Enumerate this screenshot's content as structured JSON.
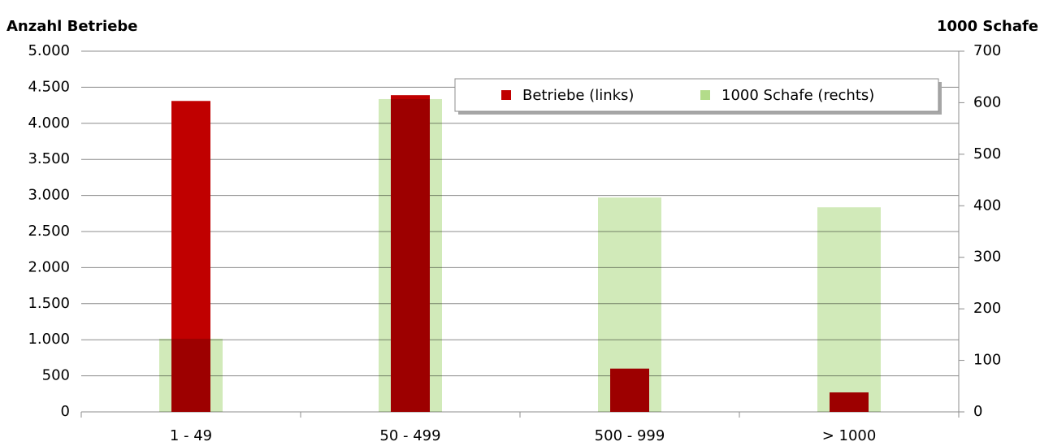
{
  "chart_data": {
    "type": "bar",
    "y_axis_title": "Anzahl Betriebe",
    "y2_axis_title": "1000 Schafe",
    "categories": [
      "1 - 49",
      "50 - 499",
      "500 - 999",
      "> 1000"
    ],
    "series": [
      {
        "name": "Betriebe (links)",
        "color": "#c00000",
        "values": [
          4310,
          4390,
          600,
          270
        ]
      },
      {
        "name": "1000 Schafe (rechts)",
        "color": "#b3dc8a",
        "axis": "y2",
        "values": [
          142,
          607,
          416,
          397
        ]
      }
    ],
    "ylim": [
      0,
      5000
    ],
    "yticks": [
      0,
      500,
      {
        "value": 1000,
        "label": "1.000"
      },
      {
        "value": 1500,
        "label": "1.500"
      },
      {
        "value": 2000,
        "label": "2.000"
      },
      {
        "value": 2500,
        "label": "2.500"
      },
      {
        "value": 3000,
        "label": "3.000"
      },
      {
        "value": 3500,
        "label": "3.500"
      },
      {
        "value": 4000,
        "label": "4.000"
      },
      {
        "value": 4500,
        "label": "4.500"
      },
      {
        "value": 5000,
        "label": "5.000"
      }
    ],
    "y2lim": [
      0,
      700
    ],
    "y2ticks": [
      0,
      100,
      200,
      300,
      400,
      500,
      600,
      700
    ],
    "grid": true,
    "legend": "top-right"
  }
}
